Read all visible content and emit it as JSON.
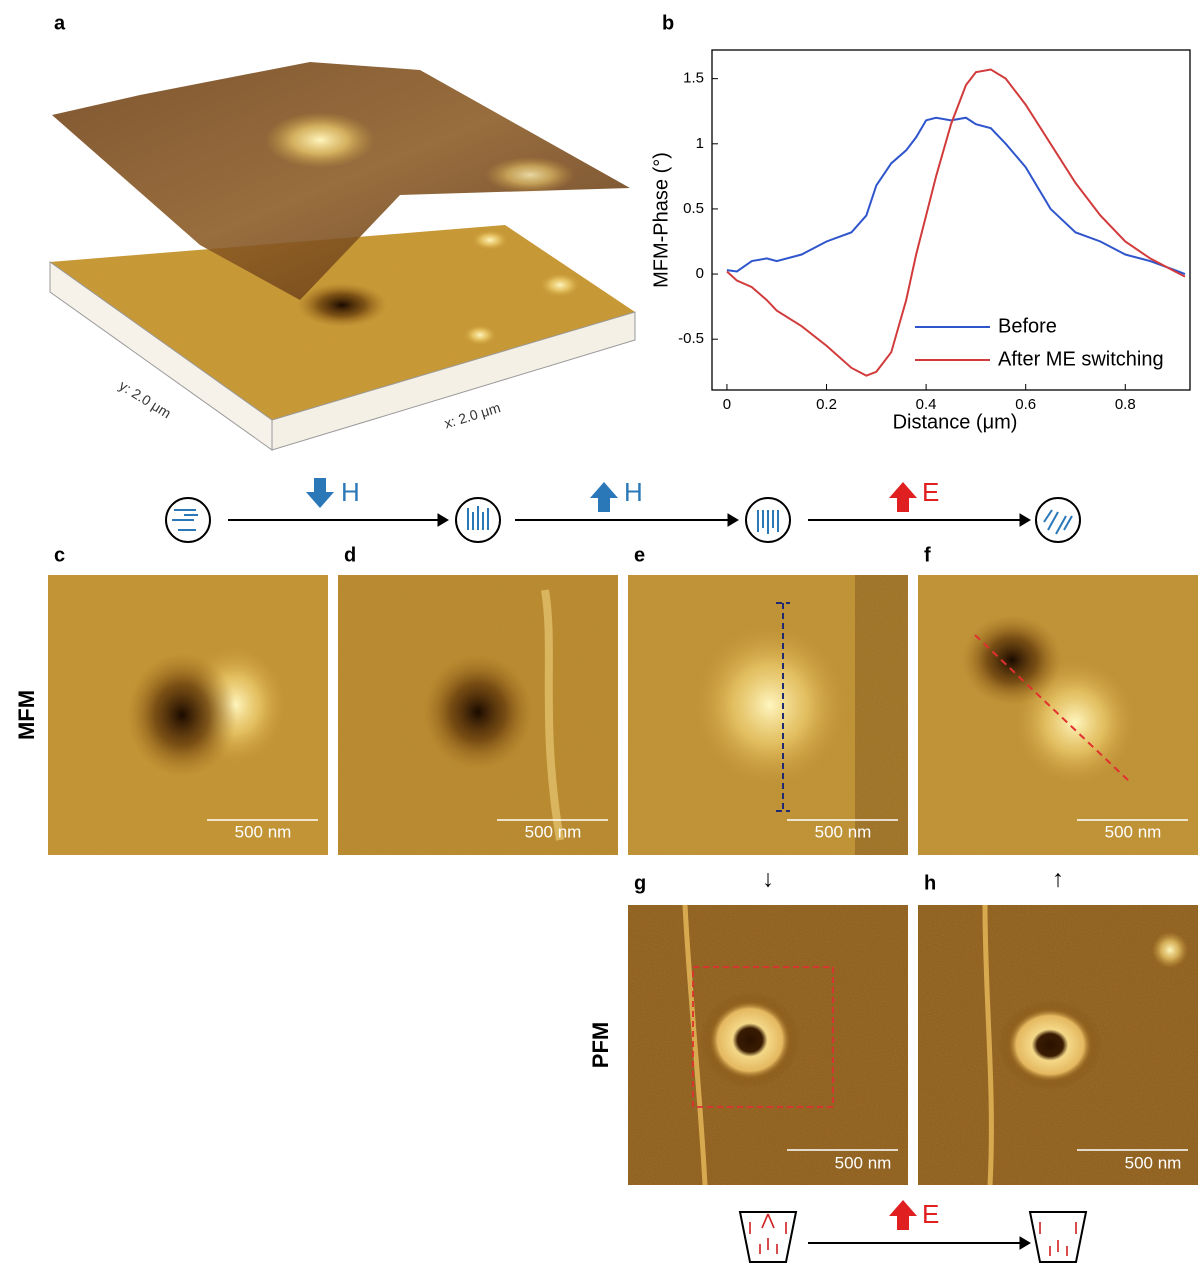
{
  "panel_labels": [
    "a",
    "b",
    "c",
    "d",
    "e",
    "f",
    "g",
    "h"
  ],
  "panel_a": {
    "y_axis": "y: 2.0 μm",
    "x_axis": "x: 2.0 μm"
  },
  "chart_data": {
    "type": "line",
    "xlabel": "Distance (μm)",
    "ylabel": "MFM-Phase (°)",
    "x": [
      0,
      0.02,
      0.05,
      0.08,
      0.1,
      0.15,
      0.2,
      0.25,
      0.28,
      0.3,
      0.33,
      0.36,
      0.38,
      0.4,
      0.42,
      0.45,
      0.48,
      0.5,
      0.53,
      0.56,
      0.6,
      0.65,
      0.7,
      0.75,
      0.8,
      0.85,
      0.9,
      0.92
    ],
    "series": [
      {
        "name": "Before",
        "color": "#2f55cc",
        "values": [
          0.03,
          0.02,
          0.1,
          0.12,
          0.1,
          0.15,
          0.25,
          0.32,
          0.45,
          0.68,
          0.85,
          0.95,
          1.05,
          1.18,
          1.2,
          1.18,
          1.2,
          1.15,
          1.12,
          1.0,
          0.82,
          0.5,
          0.32,
          0.25,
          0.15,
          0.1,
          0.03,
          0.0
        ]
      },
      {
        "name": "After ME switching",
        "color": "#d23b3b",
        "values": [
          0.02,
          -0.05,
          -0.1,
          -0.2,
          -0.28,
          -0.4,
          -0.55,
          -0.72,
          -0.78,
          -0.75,
          -0.6,
          -0.2,
          0.15,
          0.45,
          0.75,
          1.15,
          1.45,
          1.55,
          1.57,
          1.5,
          1.3,
          1.0,
          0.7,
          0.45,
          0.25,
          0.12,
          0.02,
          -0.02
        ]
      }
    ],
    "xlim": [
      -0.03,
      0.93
    ],
    "ylim": [
      -0.89,
      1.72
    ],
    "xticks": [
      0,
      0.2,
      0.4,
      0.6,
      0.8
    ],
    "yticks": [
      -0.5,
      0,
      0.5,
      1,
      1.5
    ],
    "legend": "lower right",
    "grid": false
  },
  "scale_bars": [
    "500 nm",
    "500 nm",
    "500 nm",
    "500 nm",
    "500 nm",
    "500 nm"
  ],
  "row_labels": [
    "MFM",
    "PFM"
  ],
  "field_labels": [
    "H",
    "H",
    "E",
    "E"
  ],
  "polarization_arrows": [
    "↓",
    "↑"
  ]
}
